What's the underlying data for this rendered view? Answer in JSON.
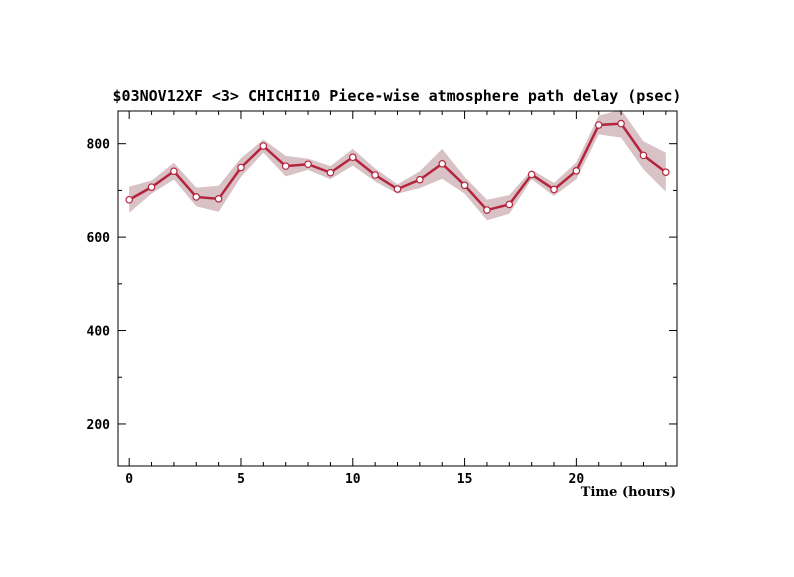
{
  "chart_data": {
    "type": "line",
    "title": "$03NOV12XF <3>  CHICHI10  Piece-wise atmosphere path delay (psec)",
    "xlabel": "Time (hours)",
    "ylabel": "",
    "xlim": [
      -0.5,
      24.5
    ],
    "ylim": [
      110,
      870
    ],
    "x_ticks": [
      0,
      5,
      10,
      15,
      20
    ],
    "y_ticks": [
      200,
      400,
      600,
      800
    ],
    "grid": false,
    "colors": {
      "line": "#b4253d",
      "band": "#d8c2c6",
      "marker_fill": "#ffffff"
    },
    "series": [
      {
        "x": [
          0,
          1,
          2,
          3,
          4,
          5,
          6,
          7,
          8,
          9,
          10,
          11,
          12,
          13,
          14,
          15,
          16,
          17,
          18,
          19,
          20,
          21,
          22,
          23,
          24
        ],
        "y": [
          680,
          707,
          741,
          686,
          682,
          749,
          795,
          752,
          756,
          738,
          771,
          733,
          703,
          723,
          757,
          711,
          658,
          670,
          734,
          702,
          742,
          840,
          843,
          775,
          739
        ],
        "err": [
          28,
          14,
          18,
          20,
          28,
          20,
          14,
          22,
          12,
          14,
          18,
          14,
          10,
          18,
          32,
          18,
          22,
          20,
          10,
          14,
          18,
          20,
          30,
          30,
          42
        ]
      }
    ]
  }
}
